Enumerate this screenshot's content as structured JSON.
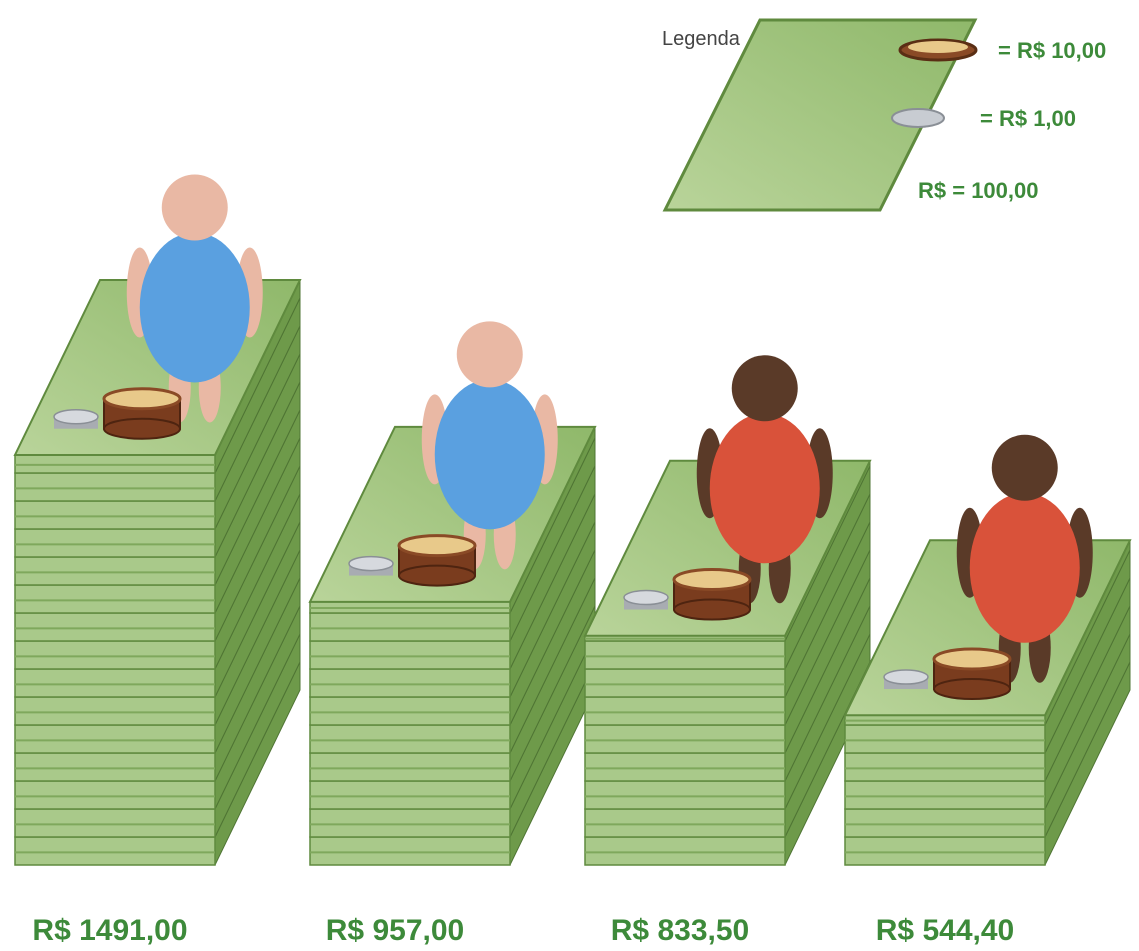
{
  "chart_data": {
    "type": "pictograph",
    "categories": [
      null,
      null,
      null,
      null
    ],
    "values": [
      1491,
      957,
      833.5,
      544.4
    ],
    "value_labels": [
      "R$ 1491,00",
      "R$ 957,00",
      "R$ 833,50",
      "R$ 544,40"
    ],
    "colors": [
      "#5aa0e0",
      "#5aa0e0",
      "#d9523a",
      "#d9523a"
    ],
    "legend": {
      "title": "Legenda",
      "items": [
        {
          "label": "= R$ 10,00",
          "value": 10
        },
        {
          "label": "= R$ 1,00",
          "value": 1
        },
        {
          "label": "R$ = 100,00",
          "value": 100
        }
      ]
    }
  }
}
